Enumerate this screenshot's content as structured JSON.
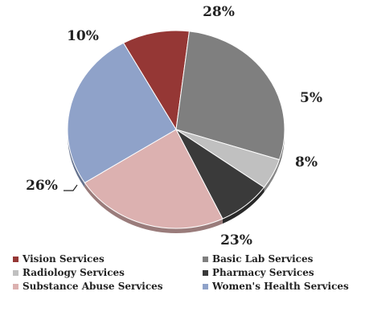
{
  "chart_data": {
    "type": "pie",
    "title": "",
    "series": [
      {
        "name": "Vision Services",
        "value": 10,
        "label": "10%",
        "color": "#953735"
      },
      {
        "name": "Basic Lab Services",
        "value": 28,
        "label": "28%",
        "color": "#7f7f7f"
      },
      {
        "name": "Radiology Services",
        "value": 5,
        "label": "5%",
        "color": "#c0c0c0"
      },
      {
        "name": "Pharmacy Services",
        "value": 8,
        "label": "8%",
        "color": "#3a3a3a"
      },
      {
        "name": "Substance Abuse Services",
        "value": 23,
        "label": "23%",
        "color": "#dcb1b0"
      },
      {
        "name": "Women's Health Services",
        "value": 26,
        "label": "26%",
        "color": "#8fa2c9"
      }
    ],
    "legend_position": "bottom"
  }
}
